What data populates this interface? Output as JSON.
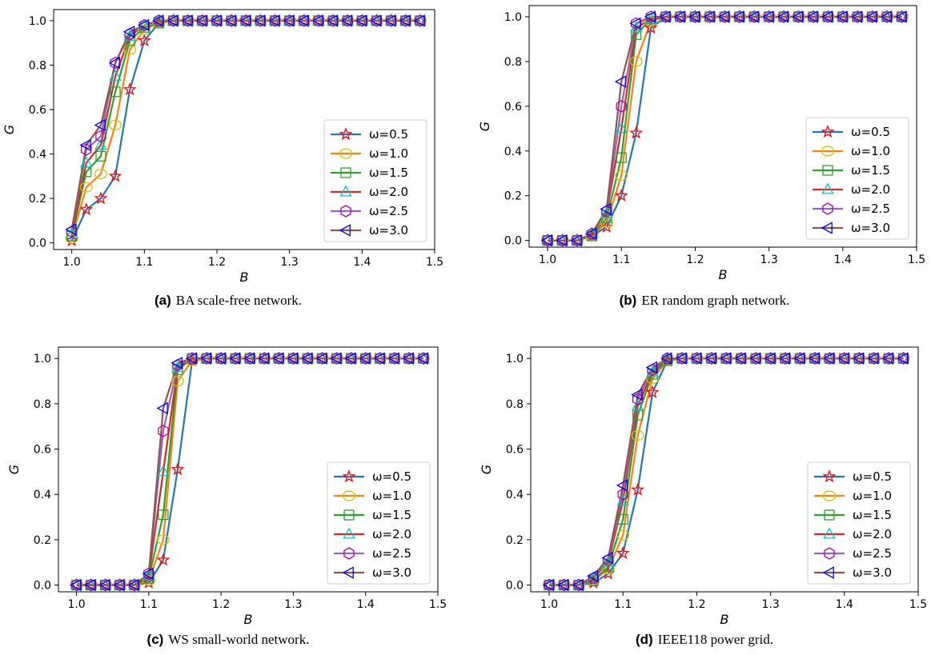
{
  "colors": {
    "series_lines": [
      "#1f77b4",
      "#ff7f0e",
      "#2ca02c",
      "#d62728",
      "#9467bd",
      "#8c564b"
    ],
    "series_markers": [
      "#ff0000",
      "#d4c200",
      "#2ca02c",
      "#00c8c8",
      "#b000b0",
      "#0000ff"
    ]
  },
  "chart_data": [
    {
      "type": "line",
      "caption_label": "(a)",
      "caption_text": "BA scale-free network.",
      "xlabel": "B",
      "ylabel": "G",
      "xlim": [
        0.975,
        1.5
      ],
      "ylim": [
        -0.03,
        1.05
      ],
      "xticks": [
        "1.0",
        "1.1",
        "1.2",
        "1.3",
        "1.4",
        "1.5"
      ],
      "yticks": [
        "0.0",
        "0.2",
        "0.4",
        "0.6",
        "0.8",
        "1.0"
      ],
      "grid": false,
      "legend_position": "lower-right",
      "x": [
        1.0,
        1.02,
        1.04,
        1.06,
        1.08,
        1.1,
        1.12,
        1.14,
        1.16,
        1.18,
        1.2,
        1.22,
        1.24,
        1.26,
        1.28,
        1.3,
        1.32,
        1.34,
        1.36,
        1.38,
        1.4,
        1.42,
        1.44,
        1.46,
        1.48
      ],
      "series": [
        {
          "name": "ω=0.5",
          "marker": "star",
          "values": [
            0.01,
            0.15,
            0.2,
            0.3,
            0.69,
            0.91,
            0.99,
            1,
            1,
            1,
            1,
            1,
            1,
            1,
            1,
            1,
            1,
            1,
            1,
            1,
            1,
            1,
            1,
            1,
            1
          ]
        },
        {
          "name": "ω=1.0",
          "marker": "circle",
          "values": [
            0.02,
            0.25,
            0.31,
            0.53,
            0.87,
            0.96,
            0.99,
            1,
            1,
            1,
            1,
            1,
            1,
            1,
            1,
            1,
            1,
            1,
            1,
            1,
            1,
            1,
            1,
            1,
            1
          ]
        },
        {
          "name": "ω=1.5",
          "marker": "square",
          "values": [
            0.03,
            0.32,
            0.39,
            0.68,
            0.91,
            0.97,
            0.99,
            1,
            1,
            1,
            1,
            1,
            1,
            1,
            1,
            1,
            1,
            1,
            1,
            1,
            1,
            1,
            1,
            1,
            1
          ]
        },
        {
          "name": "ω=2.0",
          "marker": "triangle-up",
          "values": [
            0.04,
            0.36,
            0.44,
            0.75,
            0.93,
            0.98,
            1,
            1,
            1,
            1,
            1,
            1,
            1,
            1,
            1,
            1,
            1,
            1,
            1,
            1,
            1,
            1,
            1,
            1,
            1
          ]
        },
        {
          "name": "ω=2.5",
          "marker": "hexagon",
          "values": [
            0.05,
            0.42,
            0.48,
            0.81,
            0.94,
            0.98,
            1,
            1,
            1,
            1,
            1,
            1,
            1,
            1,
            1,
            1,
            1,
            1,
            1,
            1,
            1,
            1,
            1,
            1,
            1
          ]
        },
        {
          "name": "ω=3.0",
          "marker": "triangle-left",
          "values": [
            0.06,
            0.44,
            0.53,
            0.81,
            0.95,
            0.98,
            1,
            1,
            1,
            1,
            1,
            1,
            1,
            1,
            1,
            1,
            1,
            1,
            1,
            1,
            1,
            1,
            1,
            1,
            1
          ]
        }
      ]
    },
    {
      "type": "line",
      "caption_label": "(b)",
      "caption_text": "ER random graph network.",
      "xlabel": "B",
      "ylabel": "G",
      "xlim": [
        0.975,
        1.5
      ],
      "ylim": [
        -0.03,
        1.05
      ],
      "xticks": [
        "1.0",
        "1.1",
        "1.2",
        "1.3",
        "1.4",
        "1.5"
      ],
      "yticks": [
        "0.0",
        "0.2",
        "0.4",
        "0.6",
        "0.8",
        "1.0"
      ],
      "grid": false,
      "legend_position": "lower-right",
      "x": [
        1.0,
        1.02,
        1.04,
        1.06,
        1.08,
        1.1,
        1.12,
        1.14,
        1.16,
        1.18,
        1.2,
        1.22,
        1.24,
        1.26,
        1.28,
        1.3,
        1.32,
        1.34,
        1.36,
        1.38,
        1.4,
        1.42,
        1.44,
        1.46,
        1.48
      ],
      "series": [
        {
          "name": "ω=0.5",
          "marker": "star",
          "values": [
            0,
            0,
            0,
            0.02,
            0.06,
            0.2,
            0.48,
            0.95,
            1,
            1,
            1,
            1,
            1,
            1,
            1,
            1,
            1,
            1,
            1,
            1,
            1,
            1,
            1,
            1,
            1
          ]
        },
        {
          "name": "ω=1.0",
          "marker": "circle",
          "values": [
            0,
            0,
            0,
            0.02,
            0.08,
            0.29,
            0.8,
            0.98,
            1,
            1,
            1,
            1,
            1,
            1,
            1,
            1,
            1,
            1,
            1,
            1,
            1,
            1,
            1,
            1,
            1
          ]
        },
        {
          "name": "ω=1.5",
          "marker": "square",
          "values": [
            0,
            0,
            0,
            0.02,
            0.1,
            0.37,
            0.92,
            0.99,
            1,
            1,
            1,
            1,
            1,
            1,
            1,
            1,
            1,
            1,
            1,
            1,
            1,
            1,
            1,
            1,
            1
          ]
        },
        {
          "name": "ω=2.0",
          "marker": "triangle-up",
          "values": [
            0,
            0,
            0,
            0.03,
            0.12,
            0.5,
            0.95,
            0.99,
            1,
            1,
            1,
            1,
            1,
            1,
            1,
            1,
            1,
            1,
            1,
            1,
            1,
            1,
            1,
            1,
            1
          ]
        },
        {
          "name": "ω=2.5",
          "marker": "hexagon",
          "values": [
            0,
            0,
            0,
            0.03,
            0.13,
            0.6,
            0.97,
            1,
            1,
            1,
            1,
            1,
            1,
            1,
            1,
            1,
            1,
            1,
            1,
            1,
            1,
            1,
            1,
            1,
            1
          ]
        },
        {
          "name": "ω=3.0",
          "marker": "triangle-left",
          "values": [
            0,
            0,
            0,
            0.03,
            0.14,
            0.71,
            0.97,
            1,
            1,
            1,
            1,
            1,
            1,
            1,
            1,
            1,
            1,
            1,
            1,
            1,
            1,
            1,
            1,
            1,
            1
          ]
        }
      ]
    },
    {
      "type": "line",
      "caption_label": "(c)",
      "caption_text": "WS small-world network.",
      "xlabel": "B",
      "ylabel": "G",
      "xlim": [
        0.975,
        1.5
      ],
      "ylim": [
        -0.03,
        1.05
      ],
      "xticks": [
        "1.0",
        "1.1",
        "1.2",
        "1.3",
        "1.4",
        "1.5"
      ],
      "yticks": [
        "0.0",
        "0.2",
        "0.4",
        "0.6",
        "0.8",
        "1.0"
      ],
      "grid": false,
      "legend_position": "lower-right",
      "x": [
        1.0,
        1.02,
        1.04,
        1.06,
        1.08,
        1.1,
        1.12,
        1.14,
        1.16,
        1.18,
        1.2,
        1.22,
        1.24,
        1.26,
        1.28,
        1.3,
        1.32,
        1.34,
        1.36,
        1.38,
        1.4,
        1.42,
        1.44,
        1.46,
        1.48
      ],
      "series": [
        {
          "name": "ω=0.5",
          "marker": "star",
          "values": [
            0,
            0,
            0,
            0,
            0,
            0.01,
            0.11,
            0.51,
            0.99,
            1,
            1,
            1,
            1,
            1,
            1,
            1,
            1,
            1,
            1,
            1,
            1,
            1,
            1,
            1,
            1
          ]
        },
        {
          "name": "ω=1.0",
          "marker": "circle",
          "values": [
            0,
            0,
            0,
            0,
            0,
            0.02,
            0.2,
            0.9,
            0.99,
            1,
            1,
            1,
            1,
            1,
            1,
            1,
            1,
            1,
            1,
            1,
            1,
            1,
            1,
            1,
            1
          ]
        },
        {
          "name": "ω=1.5",
          "marker": "square",
          "values": [
            0,
            0,
            0,
            0,
            0,
            0.03,
            0.31,
            0.95,
            1,
            1,
            1,
            1,
            1,
            1,
            1,
            1,
            1,
            1,
            1,
            1,
            1,
            1,
            1,
            1,
            1
          ]
        },
        {
          "name": "ω=2.0",
          "marker": "triangle-up",
          "values": [
            0,
            0,
            0,
            0,
            0,
            0.04,
            0.5,
            0.96,
            1,
            1,
            1,
            1,
            1,
            1,
            1,
            1,
            1,
            1,
            1,
            1,
            1,
            1,
            1,
            1,
            1
          ]
        },
        {
          "name": "ω=2.5",
          "marker": "hexagon",
          "values": [
            0,
            0,
            0,
            0,
            0,
            0.05,
            0.68,
            0.97,
            1,
            1,
            1,
            1,
            1,
            1,
            1,
            1,
            1,
            1,
            1,
            1,
            1,
            1,
            1,
            1,
            1
          ]
        },
        {
          "name": "ω=3.0",
          "marker": "triangle-left",
          "values": [
            0,
            0,
            0,
            0,
            0,
            0.05,
            0.78,
            0.98,
            1,
            1,
            1,
            1,
            1,
            1,
            1,
            1,
            1,
            1,
            1,
            1,
            1,
            1,
            1,
            1,
            1
          ]
        }
      ]
    },
    {
      "type": "line",
      "caption_label": "(d)",
      "caption_text": "IEEE118 power grid.",
      "xlabel": "B",
      "ylabel": "G",
      "xlim": [
        0.975,
        1.5
      ],
      "ylim": [
        -0.03,
        1.05
      ],
      "xticks": [
        "1.0",
        "1.1",
        "1.2",
        "1.3",
        "1.4",
        "1.5"
      ],
      "yticks": [
        "0.0",
        "0.2",
        "0.4",
        "0.6",
        "0.8",
        "1.0"
      ],
      "grid": false,
      "legend_position": "lower-right",
      "x": [
        1.0,
        1.02,
        1.04,
        1.06,
        1.08,
        1.1,
        1.12,
        1.14,
        1.16,
        1.18,
        1.2,
        1.22,
        1.24,
        1.26,
        1.28,
        1.3,
        1.32,
        1.34,
        1.36,
        1.38,
        1.4,
        1.42,
        1.44,
        1.46,
        1.48
      ],
      "series": [
        {
          "name": "ω=0.5",
          "marker": "star",
          "values": [
            0,
            0,
            0,
            0.01,
            0.05,
            0.14,
            0.42,
            0.85,
            0.99,
            1,
            1,
            1,
            1,
            1,
            1,
            1,
            1,
            1,
            1,
            1,
            1,
            1,
            1,
            1,
            1
          ]
        },
        {
          "name": "ω=1.0",
          "marker": "circle",
          "values": [
            0,
            0,
            0,
            0.02,
            0.07,
            0.22,
            0.66,
            0.91,
            0.99,
            1,
            1,
            1,
            1,
            1,
            1,
            1,
            1,
            1,
            1,
            1,
            1,
            1,
            1,
            1,
            1
          ]
        },
        {
          "name": "ω=1.5",
          "marker": "square",
          "values": [
            0,
            0,
            0,
            0.02,
            0.08,
            0.29,
            0.75,
            0.93,
            0.99,
            1,
            1,
            1,
            1,
            1,
            1,
            1,
            1,
            1,
            1,
            1,
            1,
            1,
            1,
            1,
            1
          ]
        },
        {
          "name": "ω=2.0",
          "marker": "triangle-up",
          "values": [
            0,
            0,
            0,
            0.03,
            0.1,
            0.37,
            0.79,
            0.94,
            1,
            1,
            1,
            1,
            1,
            1,
            1,
            1,
            1,
            1,
            1,
            1,
            1,
            1,
            1,
            1,
            1
          ]
        },
        {
          "name": "ω=2.5",
          "marker": "hexagon",
          "values": [
            0,
            0,
            0,
            0.03,
            0.11,
            0.4,
            0.82,
            0.95,
            1,
            1,
            1,
            1,
            1,
            1,
            1,
            1,
            1,
            1,
            1,
            1,
            1,
            1,
            1,
            1,
            1
          ]
        },
        {
          "name": "ω=3.0",
          "marker": "triangle-left",
          "values": [
            0,
            0,
            0,
            0.04,
            0.12,
            0.44,
            0.84,
            0.96,
            1,
            1,
            1,
            1,
            1,
            1,
            1,
            1,
            1,
            1,
            1,
            1,
            1,
            1,
            1,
            1,
            1
          ]
        }
      ]
    }
  ]
}
